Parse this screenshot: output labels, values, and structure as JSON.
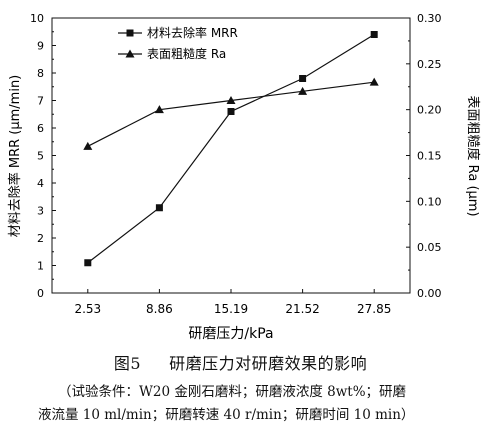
{
  "chart_data": {
    "type": "line",
    "categories": [
      "2.53",
      "8.86",
      "15.19",
      "21.52",
      "27.85"
    ],
    "xlabel": "研磨压力/kPa",
    "ylabel": "材料去除率 MRR (μm/min)",
    "y2label": "表面粗糙度 Ra (μm)",
    "ylim": [
      0,
      10
    ],
    "yticks": [
      0,
      1,
      2,
      3,
      4,
      5,
      6,
      7,
      8,
      9,
      10
    ],
    "y2lim": [
      0.0,
      0.3
    ],
    "y2ticks": [
      "0.00",
      "0.05",
      "0.10",
      "0.15",
      "0.20",
      "0.25",
      "0.30"
    ],
    "legend_position": "top-left",
    "series": [
      {
        "name": "材料去除率 MRR",
        "axis": "left",
        "marker": "square",
        "values": [
          1.1,
          3.1,
          6.6,
          7.8,
          9.4
        ]
      },
      {
        "name": "表面粗糙度 Ra",
        "axis": "right",
        "marker": "triangle",
        "values": [
          0.16,
          0.2,
          0.21,
          0.22,
          0.23
        ]
      }
    ]
  },
  "caption": {
    "figure_label": "图5",
    "title": "研磨压力对研磨效果的影响",
    "note_line1": "（试验条件：W20 金刚石磨料；研磨液浓度 8wt%；研磨",
    "note_line2": "液流量 10 ml/min；研磨转速 40 r/min；研磨时间 10 min）"
  }
}
